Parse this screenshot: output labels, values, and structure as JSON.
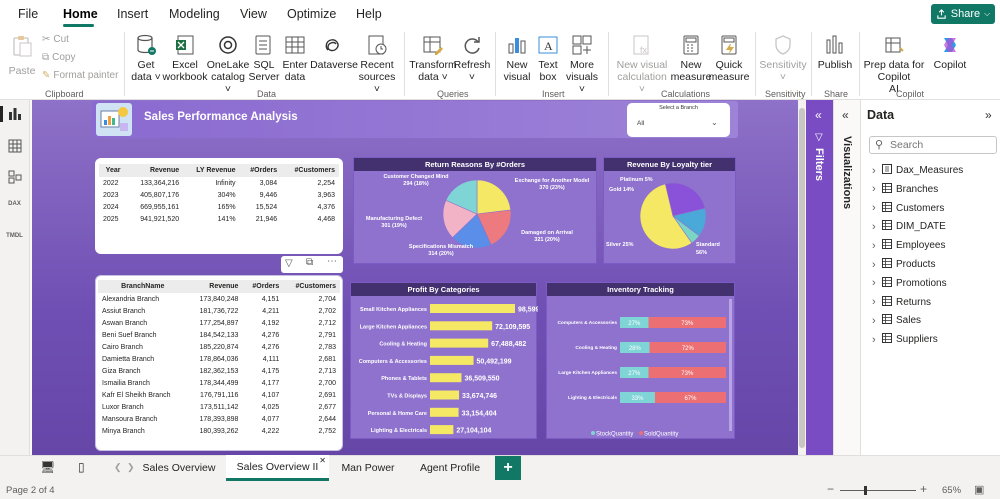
{
  "menu": {
    "file": "File",
    "home": "Home",
    "insert": "Insert",
    "modeling": "Modeling",
    "view": "View",
    "optimize": "Optimize",
    "help": "Help",
    "share": "Share"
  },
  "ribbon": {
    "paste": "Paste",
    "cut": "Cut",
    "copy": "Copy",
    "format_painter": "Format painter",
    "clipboard": "Clipboard",
    "get_data": [
      "Get",
      "data ˅"
    ],
    "excel": [
      "Excel",
      "workbook"
    ],
    "onelake": [
      "OneLake",
      "catalog ˅"
    ],
    "sql": [
      "SQL",
      "Server"
    ],
    "enter_data": [
      "Enter",
      "data"
    ],
    "dataverse": [
      "Dataverse"
    ],
    "recent": [
      "Recent",
      "sources ˅"
    ],
    "data_group": "Data",
    "transform": [
      "Transform",
      "data ˅"
    ],
    "refresh": [
      "Refresh",
      "˅"
    ],
    "queries_group": "Queries",
    "new_visual": [
      "New",
      "visual"
    ],
    "text_box": [
      "Text",
      "box"
    ],
    "more_visuals": [
      "More",
      "visuals ˅"
    ],
    "insert_group": "Insert",
    "new_visual_calc": [
      "New visual",
      "calculation ˅"
    ],
    "new_measure": [
      "New",
      "measure"
    ],
    "quick_measure": [
      "Quick",
      "measure"
    ],
    "calculations_group": "Calculations",
    "sensitivity": [
      "Sensitivity",
      "˅"
    ],
    "sensitivity_group": "Sensitivity",
    "publish": [
      "Publish"
    ],
    "share_group": "Share",
    "prep_copilot": [
      "Prep data for Copilot",
      "AI"
    ],
    "copilot": [
      "Copilot"
    ],
    "copilot_group": "Copilot"
  },
  "report": {
    "title": "Sales Performance Analysis",
    "branch_filter_label": "Select a Branch",
    "branch_filter_value": "All",
    "year_table": {
      "headers": [
        "Year",
        "Revenue",
        "LY Revenue",
        "#Orders",
        "#Customers"
      ],
      "rows": [
        [
          "2022",
          "133,364,216",
          "Infinity",
          "3,084",
          "2,254"
        ],
        [
          "2023",
          "405,807,176",
          "304%",
          "9,446",
          "3,963"
        ],
        [
          "2024",
          "669,955,161",
          "165%",
          "15,524",
          "4,376"
        ],
        [
          "2025",
          "941,921,520",
          "141%",
          "21,946",
          "4,468"
        ]
      ]
    },
    "branch_table": {
      "headers": [
        "BranchName",
        "Revenue",
        "#Orders",
        "#Customers"
      ],
      "rows": [
        [
          "Alexandria Branch",
          "173,840,248",
          "4,151",
          "2,704"
        ],
        [
          "Assiut Branch",
          "181,736,722",
          "4,211",
          "2,702"
        ],
        [
          "Aswan Branch",
          "177,254,897",
          "4,192",
          "2,712"
        ],
        [
          "Beni Suef Branch",
          "184,542,133",
          "4,276",
          "2,791"
        ],
        [
          "Cairo Branch",
          "185,220,874",
          "4,276",
          "2,783"
        ],
        [
          "Damietta Branch",
          "178,864,036",
          "4,111",
          "2,681"
        ],
        [
          "Giza Branch",
          "182,362,153",
          "4,175",
          "2,713"
        ],
        [
          "Ismailia Branch",
          "178,344,499",
          "4,177",
          "2,700"
        ],
        [
          "Kafr El Sheikh Branch",
          "176,791,116",
          "4,107",
          "2,691"
        ],
        [
          "Luxor Branch",
          "173,511,142",
          "4,025",
          "2,677"
        ],
        [
          "Mansoura Branch",
          "178,393,898",
          "4,077",
          "2,644"
        ],
        [
          "Minya Branch",
          "180,393,262",
          "4,222",
          "2,752"
        ]
      ]
    },
    "returns_title": "Return Reasons By #Orders",
    "returns_labels": [
      [
        "Customer Changed Mind",
        "294 (18%)"
      ],
      [
        "Exchange for Another Model",
        "370 (23%)"
      ],
      [
        "Manufacturing Defect",
        "301 (19%)"
      ],
      [
        "Damaged on Arrival",
        "321 (20%)"
      ],
      [
        "Specifications Mismatch",
        "314 (20%)"
      ]
    ],
    "loyalty_title": "Revenue By Loyalty tier",
    "loyalty_labels": [
      [
        "Platinum 5%"
      ],
      [
        "Gold 14%"
      ],
      [
        "Silver 25%"
      ],
      [
        "Standard",
        "56%"
      ]
    ],
    "profit_title": "Profit By Categories",
    "inventory_title": "Inventory Tracking",
    "inventory_legend": [
      "StockQuantity",
      "SoldQuantity"
    ]
  },
  "chart_data": [
    {
      "type": "pie",
      "title": "Return Reasons By #Orders",
      "categories": [
        "Exchange for Another Model",
        "Damaged on Arrival",
        "Specifications Mismatch",
        "Manufacturing Defect",
        "Customer Changed Mind"
      ],
      "values": [
        370,
        321,
        314,
        301,
        294
      ],
      "colors": [
        "#f5e864",
        "#ec7a7e",
        "#5b8ee8",
        "#f2b3c7",
        "#7fd4d6"
      ]
    },
    {
      "type": "pie",
      "title": "Revenue By Loyalty tier",
      "categories": [
        "Standard",
        "Silver",
        "Gold",
        "Platinum"
      ],
      "values": [
        56,
        25,
        14,
        5
      ],
      "colors": [
        "#f5e864",
        "#8a52d8",
        "#4aa9d8",
        "#79d6c6"
      ]
    },
    {
      "type": "bar",
      "title": "Profit By Categories",
      "categories": [
        "Small Kitchen Appliances",
        "Large Kitchen Appliances",
        "Cooling & Heating",
        "Computers & Accessories",
        "Phones & Tablets",
        "TVs & Displays",
        "Personal & Home Care",
        "Lighting & Electricals"
      ],
      "values": [
        98599573,
        72109595,
        67488482,
        50492199,
        36509550,
        33674746,
        33154404,
        27104104
      ],
      "labels": [
        "98,599,573",
        "72,109,595",
        "67,488,482",
        "50,492,199",
        "36,509,550",
        "33,674,746",
        "33,154,404",
        "27,104,104"
      ],
      "color": "#f5e864"
    },
    {
      "type": "bar",
      "title": "Inventory Tracking",
      "categories": [
        "Computers & Accessories",
        "Cooling & Heating",
        "Large Kitchen Appliances",
        "Lighting & Electricals"
      ],
      "series": [
        {
          "name": "StockQuantity",
          "values": [
            27,
            28,
            27,
            33
          ],
          "labels": [
            "27%",
            "28%",
            "27%",
            "33%"
          ],
          "color": "#7fd4d6"
        },
        {
          "name": "SoldQuantity",
          "values": [
            73,
            72,
            73,
            67
          ],
          "labels": [
            "73%",
            "72%",
            "73%",
            "67%"
          ],
          "color": "#ec6f73"
        }
      ]
    }
  ],
  "side": {
    "filters": "Filters",
    "visualizations": "Visualizations",
    "data_title": "Data",
    "search_placeholder": "Search",
    "tables": [
      "Dax_Measures",
      "Branches",
      "Customers",
      "DIM_DATE",
      "Employees",
      "Products",
      "Promotions",
      "Returns",
      "Sales",
      "Suppliers"
    ]
  },
  "pages": {
    "tabs": [
      "Sales Overview",
      "Sales Overview II",
      "Man Power",
      "Agent Profile"
    ],
    "active_index": 1,
    "status": "Page 2 of 4",
    "zoom": "65%"
  },
  "colors": {
    "accent": "#117865",
    "report_bg": "#7b5cc0",
    "visual_header": "#43306f",
    "bar_yellow": "#f5e864"
  }
}
